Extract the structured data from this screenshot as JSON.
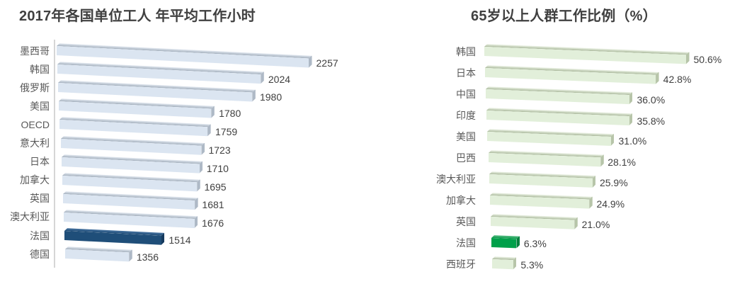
{
  "page": {
    "background": "#ffffff"
  },
  "chart_data": [
    {
      "type": "bar",
      "orientation": "horizontal",
      "title": "2017年各国单位工人 年平均工作小时",
      "categories": [
        "墨西哥",
        "韩国",
        "俄罗斯",
        "美国",
        "OECD",
        "意大利",
        "日本",
        "加拿大",
        "英国",
        "澳大利亚",
        "法国",
        "德国"
      ],
      "values": [
        2257,
        2024,
        1980,
        1780,
        1759,
        1723,
        1710,
        1695,
        1681,
        1676,
        1514,
        1356
      ],
      "value_labels": [
        "2257",
        "2024",
        "1980",
        "1780",
        "1759",
        "1723",
        "1710",
        "1695",
        "1681",
        "1676",
        "1514",
        "1356"
      ],
      "highlight_index": 10,
      "xlim": [
        1050,
        2257
      ],
      "grid": false,
      "legend": false,
      "xlabel": "",
      "ylabel": "",
      "style": {
        "bar_face": "#dbe5f1",
        "bar_top_light": "#e4eaf2",
        "bar_top_dark": "#a2aebc",
        "bar_side": "#aeb9c6",
        "highlight_face": "#1f4e79",
        "highlight_top_light": "#4a76a4",
        "highlight_top_dark": "#1d4a74",
        "highlight_side": "#163a5e",
        "axis_line_color": "#d6d6d6",
        "category_label_color": "#595959",
        "value_label_color": "#3f3f3f",
        "title_color": "#404040"
      }
    },
    {
      "type": "bar",
      "orientation": "horizontal",
      "title": "65岁以上人群工作比例（%）",
      "categories": [
        "韩国",
        "日本",
        "中国",
        "印度",
        "美国",
        "巴西",
        "澳大利亚",
        "加拿大",
        "英国",
        "法国",
        "西班牙"
      ],
      "values": [
        50.6,
        42.8,
        36.0,
        35.8,
        31.0,
        28.1,
        25.9,
        24.9,
        21.0,
        6.3,
        5.3
      ],
      "value_labels": [
        "50.6%",
        "42.8%",
        "36.0%",
        "35.8%",
        "31.0%",
        "28.1%",
        "25.9%",
        "24.9%",
        "21.0%",
        "6.3%",
        "5.3%"
      ],
      "highlight_index": 9,
      "xlim": [
        0,
        50.6
      ],
      "grid": false,
      "legend": false,
      "xlabel": "",
      "ylabel": "",
      "style": {
        "bar_face": "#e2efda",
        "bar_top_light": "#eff5e9",
        "bar_top_dark": "#a9b89a",
        "bar_side": "#b7c5a9",
        "highlight_face": "#00a04a",
        "highlight_top_light": "#5dc089",
        "highlight_top_dark": "#089648",
        "highlight_side": "#007f3c",
        "category_label_color": "#595959",
        "value_label_color": "#3f3f3f",
        "title_color": "#404040"
      }
    }
  ]
}
